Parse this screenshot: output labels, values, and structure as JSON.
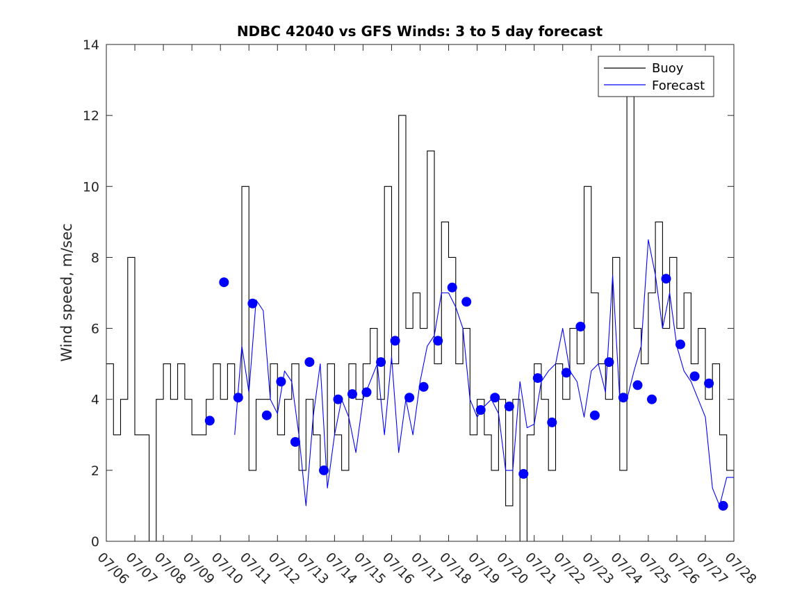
{
  "chart_data": {
    "type": "line",
    "title": "NDBC 42040 vs GFS Winds: 3 to 5 day forecast",
    "xlabel": "",
    "ylabel": "Wind speed, m/sec",
    "ylim": [
      0,
      14
    ],
    "yticks": [
      0,
      2,
      4,
      6,
      8,
      10,
      12,
      14
    ],
    "x_range_days": [
      "07/06",
      "07/28"
    ],
    "x_tick_labels": [
      "07/06",
      "07/07",
      "07/08",
      "07/09",
      "07/10",
      "07/11",
      "07/12",
      "07/13",
      "07/14",
      "07/15",
      "07/16",
      "07/17",
      "07/18",
      "07/19",
      "07/20",
      "07/21",
      "07/22",
      "07/23",
      "07/24",
      "07/25",
      "07/26",
      "07/27",
      "07/28"
    ],
    "grid": false,
    "legend": {
      "position": "top-right",
      "entries": [
        "Buoy",
        "Forecast"
      ]
    },
    "colors": {
      "buoy": "#000000",
      "forecast": "#0000ff",
      "markers": "#0000ff"
    },
    "series": [
      {
        "name": "Buoy",
        "days": [
          "07/06 00:00",
          "07/06 06:00",
          "07/06 12:00",
          "07/06 18:00",
          "07/07 00:00",
          "07/07 06:00",
          "07/07 12:00",
          "07/07 18:00",
          "07/08 00:00",
          "07/08 06:00",
          "07/08 12:00",
          "07/08 18:00",
          "07/09 00:00",
          "07/09 06:00",
          "07/09 12:00",
          "07/09 18:00",
          "07/10 00:00",
          "07/10 06:00",
          "07/10 12:00",
          "07/10 18:00",
          "07/11 00:00",
          "07/11 06:00",
          "07/11 12:00",
          "07/11 18:00",
          "07/12 00:00",
          "07/12 06:00",
          "07/12 12:00",
          "07/12 18:00",
          "07/13 00:00",
          "07/13 06:00",
          "07/13 12:00",
          "07/13 18:00",
          "07/14 00:00",
          "07/14 06:00",
          "07/14 12:00",
          "07/14 18:00",
          "07/15 00:00",
          "07/15 06:00",
          "07/15 12:00",
          "07/15 18:00",
          "07/16 00:00",
          "07/16 06:00",
          "07/16 12:00",
          "07/16 18:00",
          "07/17 00:00",
          "07/17 06:00",
          "07/17 12:00",
          "07/17 18:00",
          "07/18 00:00",
          "07/18 06:00",
          "07/18 12:00",
          "07/18 18:00",
          "07/19 00:00",
          "07/19 06:00",
          "07/19 12:00",
          "07/19 18:00",
          "07/20 00:00",
          "07/20 06:00",
          "07/20 12:00",
          "07/20 18:00",
          "07/21 00:00",
          "07/21 06:00",
          "07/21 12:00",
          "07/21 18:00",
          "07/22 00:00",
          "07/22 06:00",
          "07/22 12:00",
          "07/22 18:00",
          "07/23 00:00",
          "07/23 06:00",
          "07/23 12:00",
          "07/23 18:00",
          "07/24 00:00",
          "07/24 06:00",
          "07/24 12:00",
          "07/24 18:00",
          "07/25 00:00",
          "07/25 06:00",
          "07/25 12:00",
          "07/25 18:00",
          "07/26 00:00",
          "07/26 06:00",
          "07/26 12:00",
          "07/26 18:00",
          "07/27 00:00",
          "07/27 06:00",
          "07/27 12:00",
          "07/27 18:00",
          "07/28 00:00"
        ],
        "values": [
          5,
          3,
          4,
          8,
          3,
          3,
          0,
          4,
          5,
          4,
          5,
          4,
          3,
          3,
          4,
          5,
          4,
          5,
          4,
          10,
          2,
          4,
          4,
          5,
          3,
          4,
          5,
          2,
          4,
          3,
          2,
          5,
          3,
          2,
          5,
          4,
          5,
          6,
          4,
          10,
          5,
          12,
          6,
          7,
          6,
          11,
          5,
          9,
          8,
          5,
          6,
          3,
          4,
          3,
          2,
          4,
          1,
          4,
          0,
          3,
          5,
          4,
          2,
          5,
          4,
          6,
          5,
          10,
          7,
          5,
          4,
          8,
          2,
          13,
          6,
          5,
          7,
          9,
          6,
          8,
          6,
          7,
          5,
          6,
          4,
          5,
          3,
          2,
          1
        ]
      },
      {
        "name": "Forecast",
        "days": [
          "07/10 12:00",
          "07/10 18:00",
          "07/11 00:00",
          "07/11 06:00",
          "07/11 12:00",
          "07/11 18:00",
          "07/12 00:00",
          "07/12 06:00",
          "07/12 12:00",
          "07/12 18:00",
          "07/13 00:00",
          "07/13 06:00",
          "07/13 12:00",
          "07/13 18:00",
          "07/14 00:00",
          "07/14 06:00",
          "07/14 12:00",
          "07/14 18:00",
          "07/15 00:00",
          "07/15 06:00",
          "07/15 12:00",
          "07/15 18:00",
          "07/16 00:00",
          "07/16 06:00",
          "07/16 12:00",
          "07/16 18:00",
          "07/17 00:00",
          "07/17 06:00",
          "07/17 12:00",
          "07/17 18:00",
          "07/18 00:00",
          "07/18 06:00",
          "07/18 12:00",
          "07/18 18:00",
          "07/19 00:00",
          "07/19 06:00",
          "07/19 12:00",
          "07/19 18:00",
          "07/20 00:00",
          "07/20 06:00",
          "07/20 12:00",
          "07/20 18:00",
          "07/21 00:00",
          "07/21 06:00",
          "07/21 12:00",
          "07/21 18:00",
          "07/22 00:00",
          "07/22 06:00",
          "07/22 12:00",
          "07/22 18:00",
          "07/23 00:00",
          "07/23 06:00",
          "07/23 12:00",
          "07/23 18:00",
          "07/24 00:00",
          "07/24 06:00",
          "07/24 12:00",
          "07/24 18:00",
          "07/25 00:00",
          "07/25 06:00",
          "07/25 12:00",
          "07/25 18:00",
          "07/26 00:00",
          "07/26 06:00",
          "07/26 12:00",
          "07/26 18:00",
          "07/27 00:00",
          "07/27 06:00",
          "07/27 12:00",
          "07/27 18:00",
          "07/28 00:00"
        ],
        "values": [
          3.0,
          5.5,
          4.2,
          6.8,
          6.5,
          4.0,
          3.6,
          4.8,
          4.5,
          3.0,
          1.0,
          3.5,
          5.0,
          1.5,
          3.0,
          4.0,
          3.5,
          2.5,
          4.0,
          4.5,
          5.0,
          3.0,
          5.2,
          2.5,
          4.0,
          3.0,
          4.5,
          5.5,
          5.8,
          7.0,
          7.0,
          6.6,
          6.0,
          4.0,
          3.5,
          3.8,
          4.0,
          3.6,
          2.0,
          2.0,
          4.5,
          3.2,
          3.3,
          4.5,
          4.8,
          5.0,
          6.0,
          4.8,
          4.5,
          3.5,
          4.8,
          5.0,
          4.2,
          7.5,
          4.0,
          4.0,
          4.8,
          5.5,
          8.5,
          7.5,
          6.0,
          7.0,
          5.5,
          4.8,
          4.5,
          4.0,
          3.5,
          1.5,
          1.0,
          1.8,
          1.8
        ]
      },
      {
        "name": "markers",
        "days": [
          "07/09 15:00",
          "07/10 03:00",
          "07/10 15:00",
          "07/11 03:00",
          "07/11 15:00",
          "07/12 03:00",
          "07/12 15:00",
          "07/13 03:00",
          "07/13 15:00",
          "07/14 03:00",
          "07/14 15:00",
          "07/15 03:00",
          "07/15 15:00",
          "07/16 03:00",
          "07/16 15:00",
          "07/17 03:00",
          "07/17 15:00",
          "07/18 03:00",
          "07/18 15:00",
          "07/19 03:00",
          "07/19 15:00",
          "07/20 03:00",
          "07/20 15:00",
          "07/21 03:00",
          "07/21 15:00",
          "07/22 03:00",
          "07/22 15:00",
          "07/23 03:00",
          "07/23 15:00",
          "07/24 03:00",
          "07/24 15:00",
          "07/25 03:00",
          "07/25 15:00",
          "07/26 03:00",
          "07/26 15:00",
          "07/27 03:00",
          "07/27 15:00"
        ],
        "values": [
          3.4,
          7.3,
          4.05,
          6.7,
          3.55,
          4.5,
          2.8,
          5.05,
          2.0,
          4.0,
          4.15,
          4.2,
          5.05,
          5.65,
          4.05,
          4.35,
          5.65,
          7.15,
          6.75,
          3.7,
          4.05,
          3.8,
          1.9,
          4.6,
          3.35,
          4.75,
          6.05,
          3.55,
          5.05,
          4.05,
          4.4,
          4.0,
          7.4,
          5.55,
          4.65,
          4.45,
          1.0
        ]
      }
    ]
  }
}
